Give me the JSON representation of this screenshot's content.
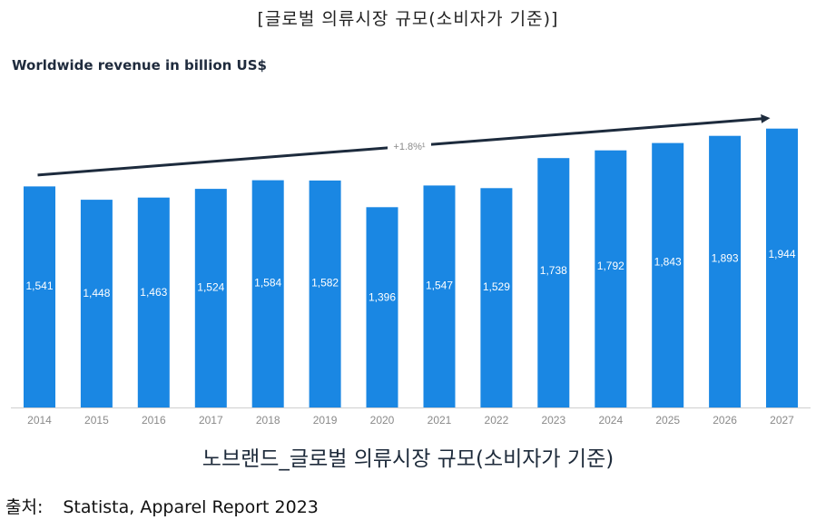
{
  "header": {
    "caption": "[글로벌 의류시장 규모(소비자가 기준)]"
  },
  "chart_data": {
    "type": "bar",
    "subtitle": "Worldwide revenue in billion US$",
    "categories": [
      "2014",
      "2015",
      "2016",
      "2017",
      "2018",
      "2019",
      "2020",
      "2021",
      "2022",
      "2023",
      "2024",
      "2025",
      "2026",
      "2027"
    ],
    "values": [
      1541,
      1448,
      1463,
      1524,
      1584,
      1582,
      1396,
      1547,
      1529,
      1738,
      1792,
      1843,
      1893,
      1944
    ],
    "value_labels": [
      "1,541",
      "1,448",
      "1,463",
      "1,524",
      "1,584",
      "1,582",
      "1,396",
      "1,547",
      "1,529",
      "1,738",
      "1,792",
      "1,843",
      "1,893",
      "1,944"
    ],
    "ylim": [
      0,
      2000
    ],
    "trend": {
      "label": "+1.8%¹",
      "from_value": 1620,
      "to_value": 2015
    },
    "xlabel": "",
    "ylabel": "",
    "colors": {
      "bar": "#1a87e3",
      "bar_label": "#ffffff",
      "trend_arrow": "#1d2b3d",
      "axis": "#cfcfcf",
      "tick_label": "#8a8a8a",
      "trend_label": "#8a8a8a"
    }
  },
  "footer": {
    "caption": "노브랜드_글로벌 의류시장 규모(소비자가 기준)",
    "source_label": "출처:",
    "source_text": "Statista, Apparel Report 2023"
  }
}
